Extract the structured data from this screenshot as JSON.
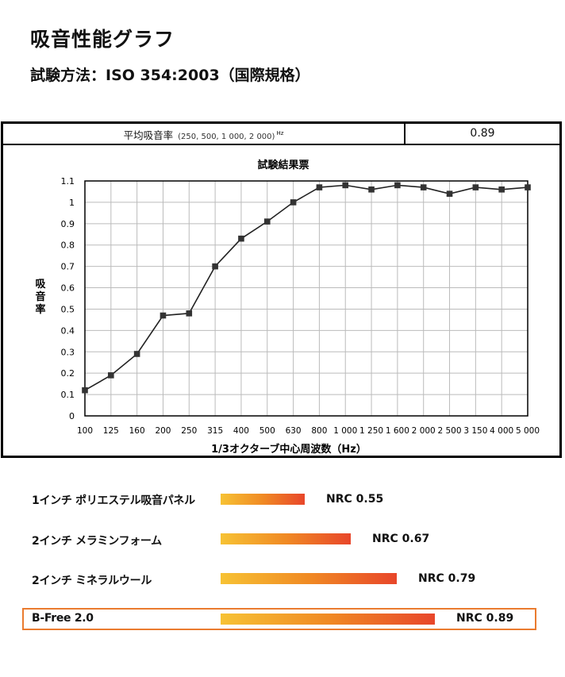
{
  "header": {
    "title": "吸音性能グラフ",
    "subtitle": "試験方法：ISO 354:2003（国際規格）"
  },
  "average_row": {
    "label": "平均吸音率",
    "freqs": "(250, 500, 1 000, 2 000)",
    "hz": "Hz",
    "value": "0.89"
  },
  "chart_data": {
    "type": "line",
    "title": "試験結果票",
    "xlabel": "1/3オクターブ中心周波数（Hz）",
    "ylabel": "吸音率",
    "categories": [
      "100",
      "125",
      "160",
      "200",
      "250",
      "315",
      "400",
      "500",
      "630",
      "800",
      "1 000",
      "1 250",
      "1 600",
      "2 000",
      "2 500",
      "3 150",
      "4 000",
      "5 000"
    ],
    "y_ticks": [
      "0",
      "0.1",
      "0.2",
      "0.3",
      "0.4",
      "0.5",
      "0.6",
      "0.7",
      "0.8",
      "0.9",
      "1",
      "1.1"
    ],
    "ylim": [
      0,
      1.1
    ],
    "grid": true,
    "series": [
      {
        "values": [
          0.12,
          0.19,
          0.29,
          0.47,
          0.48,
          0.7,
          0.83,
          0.91,
          1.0,
          1.07,
          1.08,
          1.06,
          1.08,
          1.07,
          1.04,
          1.07,
          1.06,
          1.07
        ]
      }
    ]
  },
  "nrc_comparison": [
    {
      "name": "1インチ ポリエステル吸音パネル",
      "nrc": 0.55,
      "label": "NRC 0.55",
      "highlight": false
    },
    {
      "name": "2インチ メラミンフォーム",
      "nrc": 0.67,
      "label": "NRC 0.67",
      "highlight": false
    },
    {
      "name": "2インチ ミネラルウール",
      "nrc": 0.79,
      "label": "NRC 0.79",
      "highlight": false
    },
    {
      "name": "B-Free 2.0",
      "nrc": 0.89,
      "label": "NRC 0.89",
      "highlight": true
    }
  ],
  "colors": {
    "highlight_border": "#ea7b2f",
    "bar_start": "#f7c234",
    "bar_end": "#e8462a"
  }
}
